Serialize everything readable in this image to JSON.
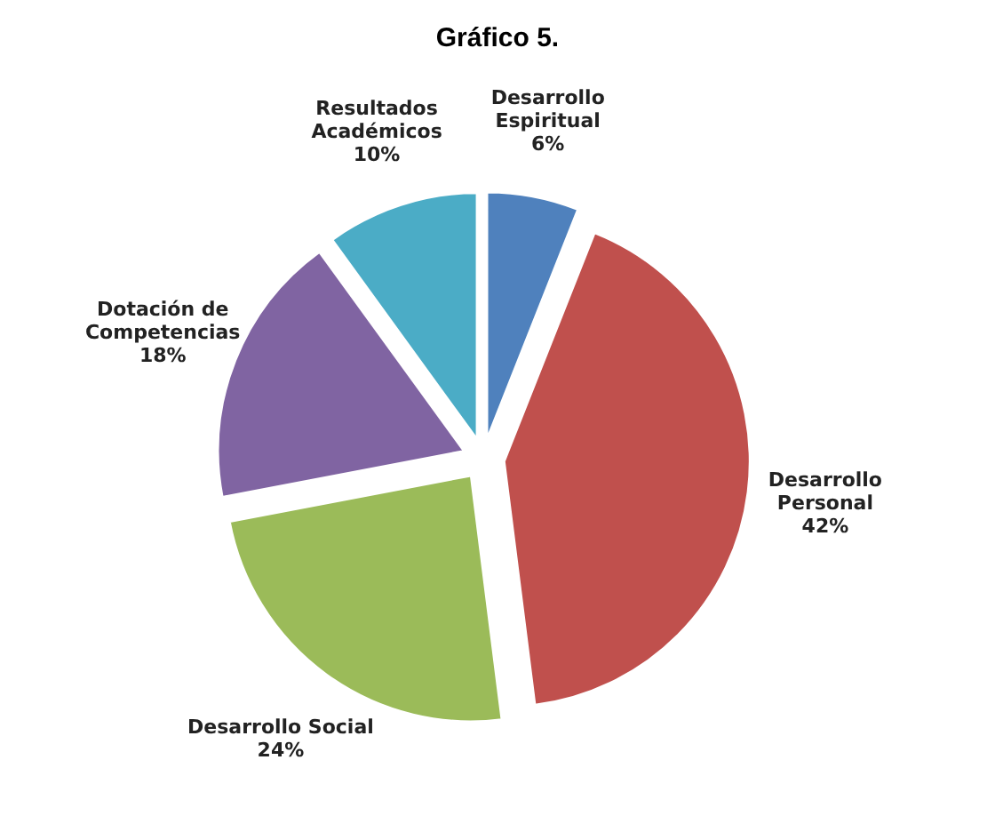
{
  "chart_data": {
    "type": "pie",
    "title": "Gráfico 5.",
    "categories": [
      "Desarrollo Espiritual",
      "Desarrollo Personal",
      "Desarrollo Social",
      "Dotación de Competencias",
      "Resultados Académicos"
    ],
    "values": [
      6,
      42,
      24,
      18,
      10
    ],
    "value_labels": [
      "6%",
      "42%",
      "24%",
      "18%",
      "10%"
    ],
    "colors": [
      "#4f81bd",
      "#c0504d",
      "#9bbb59",
      "#8064a2",
      "#4bacc6"
    ],
    "legend": false
  }
}
